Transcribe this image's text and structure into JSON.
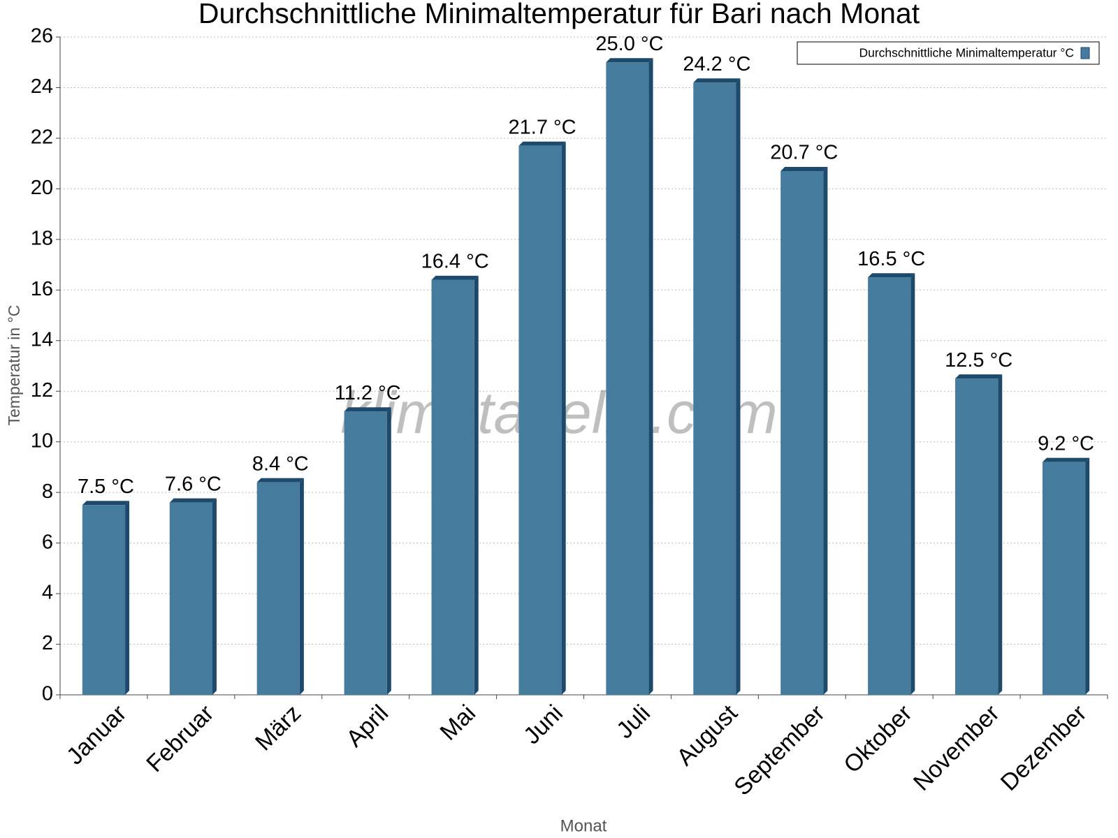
{
  "chart_data": {
    "type": "bar",
    "title": "Durchschnittliche Minimaltemperatur für Bari nach Monat",
    "x_label": "Monat",
    "y_label": "Temperatur in °C",
    "watermark": "klimatabelle.com",
    "categories": [
      "Januar",
      "Februar",
      "März",
      "April",
      "Mai",
      "Juni",
      "Juli",
      "August",
      "September",
      "Oktober",
      "November",
      "Dezember"
    ],
    "series": [
      {
        "name": "Durchschnittliche Minimaltemperatur °C",
        "color": "#457b9d",
        "values": [
          7.5,
          7.6,
          8.4,
          11.2,
          16.4,
          21.7,
          25.0,
          24.2,
          20.7,
          16.5,
          12.5,
          9.2
        ],
        "value_labels": [
          "7.5 °C",
          "7.6 °C",
          "8.4 °C",
          "11.2 °C",
          "16.4 °C",
          "21.7 °C",
          "25.0 °C",
          "24.2 °C",
          "20.7 °C",
          "16.5 °C",
          "12.5 °C",
          "9.2 °C"
        ]
      }
    ],
    "ylim": [
      0,
      26
    ],
    "yticks": [
      0,
      2,
      4,
      6,
      8,
      10,
      12,
      14,
      16,
      18,
      20,
      22,
      24,
      26
    ],
    "grid": true,
    "legend": "top-right"
  }
}
